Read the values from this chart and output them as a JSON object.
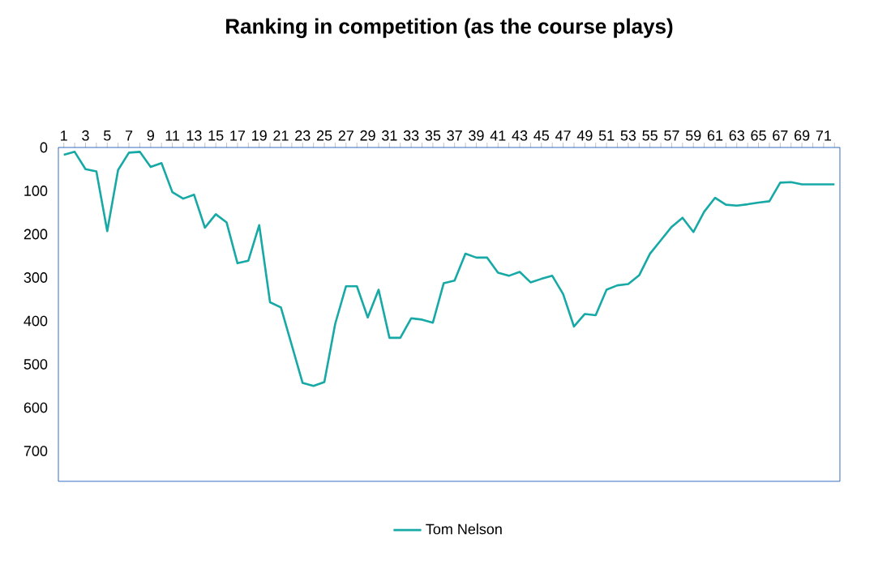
{
  "chart_data": {
    "type": "line",
    "title": "Ranking in competition (as the course plays)",
    "categories": [
      "1",
      null,
      "3",
      null,
      "5",
      null,
      "7",
      null,
      "9",
      null,
      "11",
      null,
      "13",
      null,
      "15",
      null,
      "17",
      null,
      "19",
      null,
      "21",
      null,
      "23",
      null,
      "25",
      null,
      "27",
      null,
      "29",
      null,
      "31",
      null,
      "33",
      null,
      "35",
      null,
      "37",
      null,
      "39",
      null,
      "41",
      null,
      "43",
      null,
      "45",
      null,
      "47",
      null,
      "49",
      null,
      "51",
      null,
      "53",
      null,
      "55",
      null,
      "57",
      null,
      "59",
      null,
      "61",
      null,
      "63",
      null,
      "65",
      null,
      "67",
      null,
      "69",
      null,
      "71",
      null
    ],
    "series": [
      {
        "name": "Tom Nelson",
        "color": "#17a9a6",
        "values": [
          17,
          10,
          50,
          55,
          193,
          52,
          12,
          10,
          45,
          36,
          103,
          118,
          109,
          185,
          154,
          173,
          267,
          261,
          179,
          357,
          369,
          456,
          543,
          550,
          541,
          407,
          320,
          320,
          392,
          328,
          439,
          439,
          394,
          397,
          404,
          313,
          307,
          245,
          254,
          254,
          289,
          296,
          287,
          311,
          303,
          296,
          338,
          413,
          384,
          387,
          328,
          318,
          315,
          295,
          245,
          214,
          183,
          162,
          195,
          148,
          116,
          132,
          134,
          131,
          127,
          124,
          81,
          80,
          85,
          85,
          85,
          85
        ]
      }
    ],
    "ylim": [
      770,
      0
    ],
    "yticks": [
      0,
      100,
      200,
      300,
      400,
      500,
      600,
      700
    ],
    "legend": "bottom",
    "marker": "none",
    "line_style": "solid"
  }
}
